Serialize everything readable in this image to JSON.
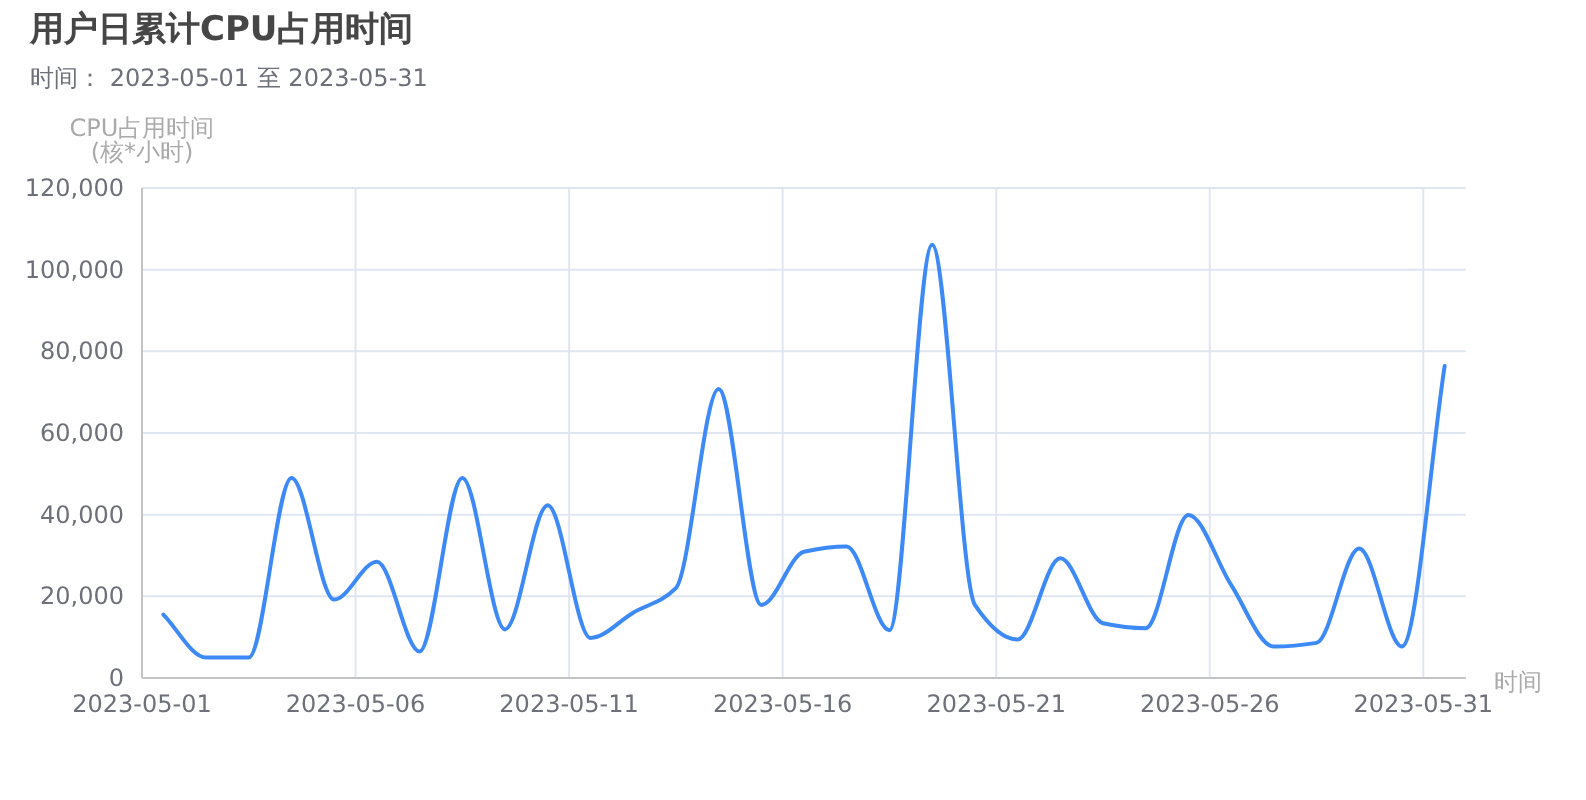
{
  "chart_data": {
    "type": "line",
    "title": "用户日累计CPU占用时间",
    "subtitle": "时间： 2023-05-01 至 2023-05-31",
    "xlabel": "时间",
    "ylabel": "CPU占用时间 (核*小时)",
    "x": [
      "2023-05-01T12:00",
      "2023-05-02T12:00",
      "2023-05-03T12:00",
      "2023-05-04T12:00",
      "2023-05-05T12:00",
      "2023-05-06T12:00",
      "2023-05-07T12:00",
      "2023-05-08T12:00",
      "2023-05-09T12:00",
      "2023-05-10T12:00",
      "2023-05-11T12:00",
      "2023-05-12T12:00",
      "2023-05-13T12:00",
      "2023-05-14T12:00",
      "2023-05-15T12:00",
      "2023-05-16T12:00",
      "2023-05-17T12:00",
      "2023-05-18T12:00",
      "2023-05-19T12:00",
      "2023-05-20T12:00",
      "2023-05-21T12:00",
      "2023-05-22T12:00",
      "2023-05-23T12:00",
      "2023-05-24T12:00",
      "2023-05-25T12:00",
      "2023-05-26T12:00",
      "2023-05-27T12:00",
      "2023-05-28T12:00",
      "2023-05-29T12:00",
      "2023-05-30T12:00",
      "2023-05-31T12:00"
    ],
    "series": [
      {
        "color": "#3d8af7",
        "values": [
          15500,
          5000,
          5000,
          49000,
          19200,
          28500,
          6500,
          49000,
          11900,
          42300,
          9800,
          16000,
          22000,
          70800,
          17900,
          30900,
          32200,
          11700,
          106100,
          17900,
          9400,
          29300,
          13400,
          12200,
          39900,
          22800,
          7700,
          8600,
          31700,
          7700,
          76400
        ]
      }
    ],
    "xlim": [
      "2023-05-01",
      "2023-06-01"
    ],
    "xticks": [
      "2023-05-01",
      "2023-05-06",
      "2023-05-11",
      "2023-05-16",
      "2023-05-21",
      "2023-05-26",
      "2023-05-31"
    ],
    "ylim": [
      0,
      120000
    ],
    "yticks": [
      0,
      {
        "value": 20000,
        "label": "20,000"
      },
      {
        "value": 40000,
        "label": "40,000"
      },
      {
        "value": 60000,
        "label": "60,000"
      },
      {
        "value": 80000,
        "label": "80,000"
      },
      {
        "value": 100000,
        "label": "100,000"
      },
      {
        "value": 120000,
        "label": "120,000"
      }
    ],
    "grid": true,
    "line_style": "solid"
  }
}
